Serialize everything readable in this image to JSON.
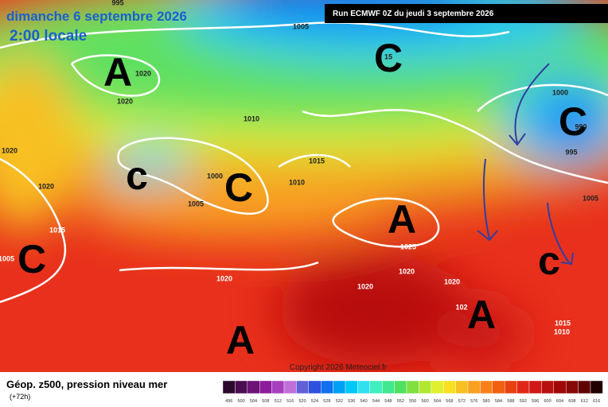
{
  "header": {
    "date": "dimanche 6 septembre 2026",
    "time": "2:00 locale",
    "run": "Run ECMWF 0Z du jeudi 3 septembre 2026"
  },
  "map": {
    "centers": [
      "A",
      "C",
      "C",
      "c",
      "C",
      "A",
      "C",
      "c",
      "A",
      "A"
    ],
    "isobar_labels": [
      "995",
      "1005",
      "1020",
      "1020",
      "1010",
      "1020",
      "1020",
      "1000",
      "1005",
      "1015",
      "1010",
      "1015",
      "1005",
      "1020",
      "1025",
      "1020",
      "1020",
      "1020",
      "102",
      "1015",
      "1010",
      "1005",
      "1000",
      "990",
      "995",
      "15"
    ]
  },
  "footer": {
    "title": "Géop. z500, pression niveau mer",
    "lead": "(+72h)",
    "copyright": "Copyright 2026 Meteociel.fr"
  },
  "colorbar": {
    "labels": [
      "496",
      "500",
      "504",
      "508",
      "512",
      "516",
      "520",
      "524",
      "528",
      "532",
      "536",
      "540",
      "544",
      "548",
      "552",
      "556",
      "560",
      "564",
      "568",
      "572",
      "576",
      "580",
      "584",
      "588",
      "592",
      "596",
      "600",
      "604",
      "608",
      "612",
      "616"
    ],
    "colors": [
      "#2b0a2e",
      "#4b0d52",
      "#6d1478",
      "#8c1c9c",
      "#a63fbd",
      "#c070d8",
      "#6060d8",
      "#3050e0",
      "#1070f0",
      "#00a0f5",
      "#00c8f8",
      "#30e0f0",
      "#40f0c0",
      "#40e890",
      "#50e060",
      "#80e040",
      "#b0e830",
      "#e0f030",
      "#f8e020",
      "#f8c020",
      "#f8a020",
      "#f88018",
      "#f06010",
      "#e84010",
      "#e02818",
      "#d01818",
      "#b81010",
      "#a00808",
      "#880808",
      "#600404",
      "#200000"
    ]
  }
}
